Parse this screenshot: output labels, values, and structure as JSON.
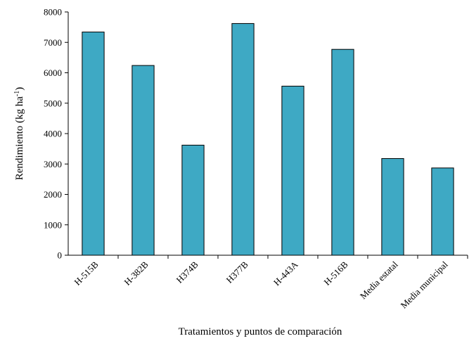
{
  "chart_data": {
    "type": "bar",
    "categories": [
      "H-515B",
      "H-382B",
      "H374B",
      "H377B",
      "H-443A",
      "H-516B",
      "Media estatal",
      "Media municipal"
    ],
    "values": [
      7340,
      6240,
      3620,
      7620,
      5560,
      6770,
      3180,
      2870
    ],
    "xlabel": "Tratamientos  y puntos  de  comparación",
    "ylabel": {
      "main": "Rendimiento  (kg ha",
      "sup": "-1",
      "close": ")"
    },
    "ylim": [
      0,
      8000
    ],
    "yticks": [
      0,
      1000,
      2000,
      3000,
      4000,
      5000,
      6000,
      7000,
      8000
    ],
    "grid": false,
    "legend": "none",
    "bar_color": "#3ea9c4"
  }
}
